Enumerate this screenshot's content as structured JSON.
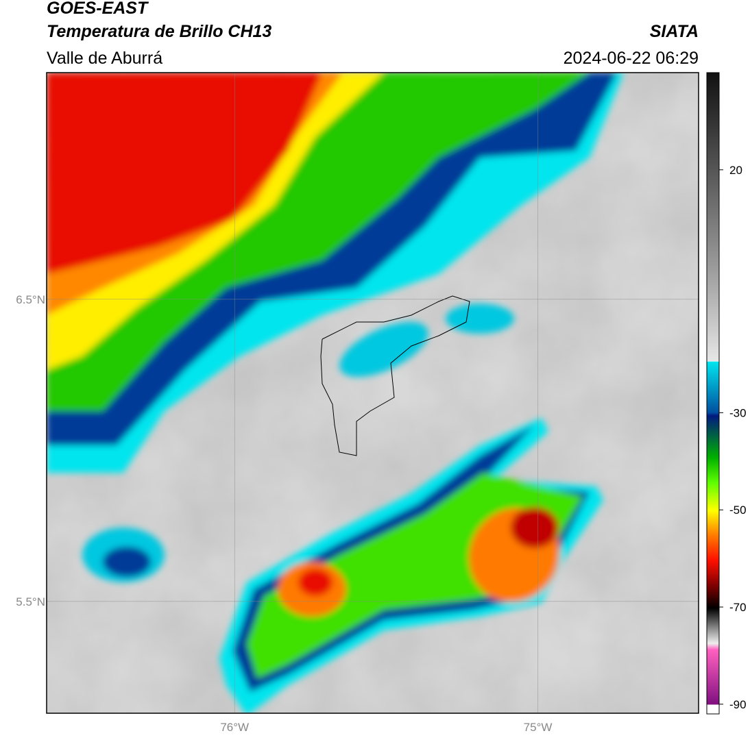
{
  "header": {
    "satellite": "GOES-EAST",
    "product": "Temperatura de Brillo CH13",
    "region": "Valle de Aburrá",
    "agency": "SIATA",
    "timestamp": "2024-06-22 06:29"
  },
  "map": {
    "xlim": [
      -76.62,
      -74.47
    ],
    "ylim": [
      5.13,
      7.25
    ],
    "xticks": [
      {
        "value": -76,
        "label": "76°W"
      },
      {
        "value": -75,
        "label": "75°W"
      }
    ],
    "yticks": [
      {
        "value": 6.5,
        "label": "6.5°N"
      },
      {
        "value": 5.5,
        "label": "5.5°N"
      }
    ],
    "grid": true
  },
  "colorbar": {
    "lim": [
      -92,
      40
    ],
    "ticks": [
      20,
      -30,
      -50,
      -70,
      -90
    ]
  }
}
